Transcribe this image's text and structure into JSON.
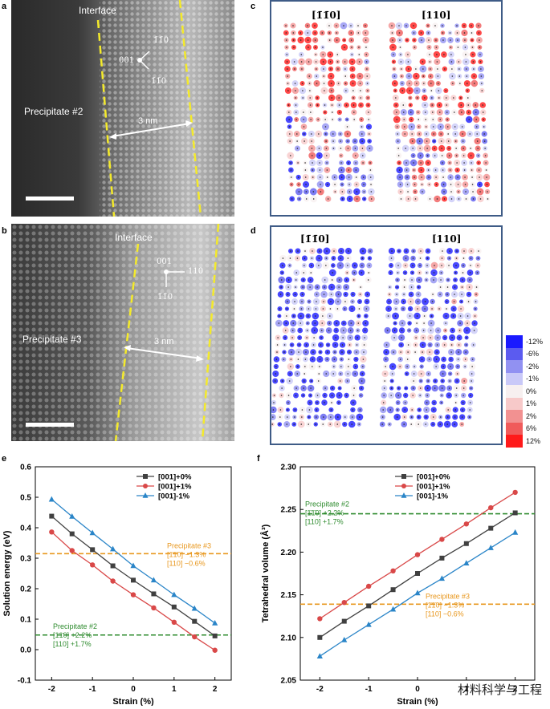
{
  "panel_labels": {
    "a": "a",
    "b": "b",
    "c": "c",
    "d": "d",
    "e": "e",
    "f": "f"
  },
  "micrograph_a": {
    "interface": "Interface",
    "precipitate": "Precipitate #2",
    "width": "3 nm",
    "axes": {
      "center": "001",
      "up": "1̄1̄0",
      "down": "1̄1̄0"
    }
  },
  "micrograph_b": {
    "interface": "Interface",
    "precipitate": "Precipitate  #3",
    "width": "3 nm",
    "axes": {
      "center": "001",
      "right": "110",
      "down": "1̄1̄0"
    }
  },
  "strain_maps_c": {
    "left_title": "[1̄1̄0]",
    "right_title": "[110]"
  },
  "strain_maps_d": {
    "left_title": "[1̄1̄0]",
    "right_title": "[110]"
  },
  "strain_colorbar": {
    "labels": [
      "-12%",
      "-6%",
      "-2%",
      "-1%",
      "0%",
      "1%",
      "2%",
      "6%",
      "12%"
    ],
    "colors": [
      "#1a1aff",
      "#5b5bf0",
      "#9191f2",
      "#c9c9f8",
      "#f7f0f0",
      "#f7c9c9",
      "#f29191",
      "#f05b5b",
      "#ff1a1a"
    ]
  },
  "chart_data": [
    {
      "type": "line",
      "xlabel": "Strain (%)",
      "ylabel": "Solution energy (eV)",
      "xlim": [
        -2.4,
        2.4
      ],
      "ylim": [
        -0.1,
        0.6
      ],
      "xticks": [
        -2,
        -1,
        0,
        1,
        2
      ],
      "yticks": [
        -0.1,
        0.0,
        0.1,
        0.2,
        0.3,
        0.4,
        0.5,
        0.6
      ],
      "x": [
        -2,
        -1.5,
        -1,
        -0.5,
        0,
        0.5,
        1,
        1.5,
        2
      ],
      "series": [
        {
          "name": "[001]+0%",
          "color": "#404040",
          "marker": "square",
          "values": [
            0.438,
            0.38,
            0.328,
            0.275,
            0.228,
            0.183,
            0.14,
            0.093,
            0.045
          ]
        },
        {
          "name": "[001]+1%",
          "color": "#d94848",
          "marker": "circle",
          "values": [
            0.386,
            0.325,
            0.278,
            0.225,
            0.18,
            0.137,
            0.09,
            0.042,
            -0.002
          ]
        },
        {
          "name": "[001]-1%",
          "color": "#2a85c8",
          "marker": "triangle",
          "values": [
            0.493,
            0.437,
            0.383,
            0.33,
            0.275,
            0.228,
            0.18,
            0.135,
            0.087
          ]
        }
      ],
      "reference_lines": [
        {
          "y": 0.315,
          "color": "#e8971d",
          "lines": [
            "Precipitate  #3",
            "[1̄1̄0] −1.3%",
            "[110] −0.6%"
          ]
        },
        {
          "y": 0.048,
          "color": "#2e8b2e",
          "lines": [
            "Precipitate  #2",
            "[1̄1̄0] +2.2%",
            "[110] +1.7%"
          ]
        }
      ]
    },
    {
      "type": "line",
      "xlabel": "Strain (%)",
      "ylabel": "Tetrahedral volume (Å³)",
      "xlim": [
        -2.4,
        2.4
      ],
      "ylim": [
        2.05,
        2.3
      ],
      "xticks": [
        -2,
        -1,
        0,
        1,
        2
      ],
      "yticks": [
        2.05,
        2.1,
        2.15,
        2.2,
        2.25,
        2.3
      ],
      "x": [
        -2,
        -1.5,
        -1,
        -0.5,
        0,
        0.5,
        1,
        1.5,
        2
      ],
      "series": [
        {
          "name": "[001]+0%",
          "color": "#404040",
          "marker": "square",
          "values": [
            2.1,
            2.119,
            2.137,
            2.156,
            2.175,
            2.193,
            2.21,
            2.228,
            2.246
          ]
        },
        {
          "name": "[001]+1%",
          "color": "#d94848",
          "marker": "circle",
          "values": [
            2.122,
            2.141,
            2.16,
            2.178,
            2.197,
            2.215,
            2.233,
            2.252,
            2.27
          ]
        },
        {
          "name": "[001]-1%",
          "color": "#2a85c8",
          "marker": "triangle",
          "values": [
            2.078,
            2.097,
            2.115,
            2.133,
            2.152,
            2.169,
            2.187,
            2.205,
            2.223
          ]
        }
      ],
      "reference_lines": [
        {
          "y": 2.245,
          "color": "#2e8b2e",
          "lines": [
            "Precipitate  #2",
            "[1̄1̄0] +2.2%",
            "[110] +1.7%"
          ]
        },
        {
          "y": 2.139,
          "color": "#e8971d",
          "lines": [
            "Precipitate  #3",
            "[1̄1̄0] −1.3%",
            "[110] −0.6%"
          ]
        }
      ]
    }
  ],
  "watermark": "材料科学与工程"
}
